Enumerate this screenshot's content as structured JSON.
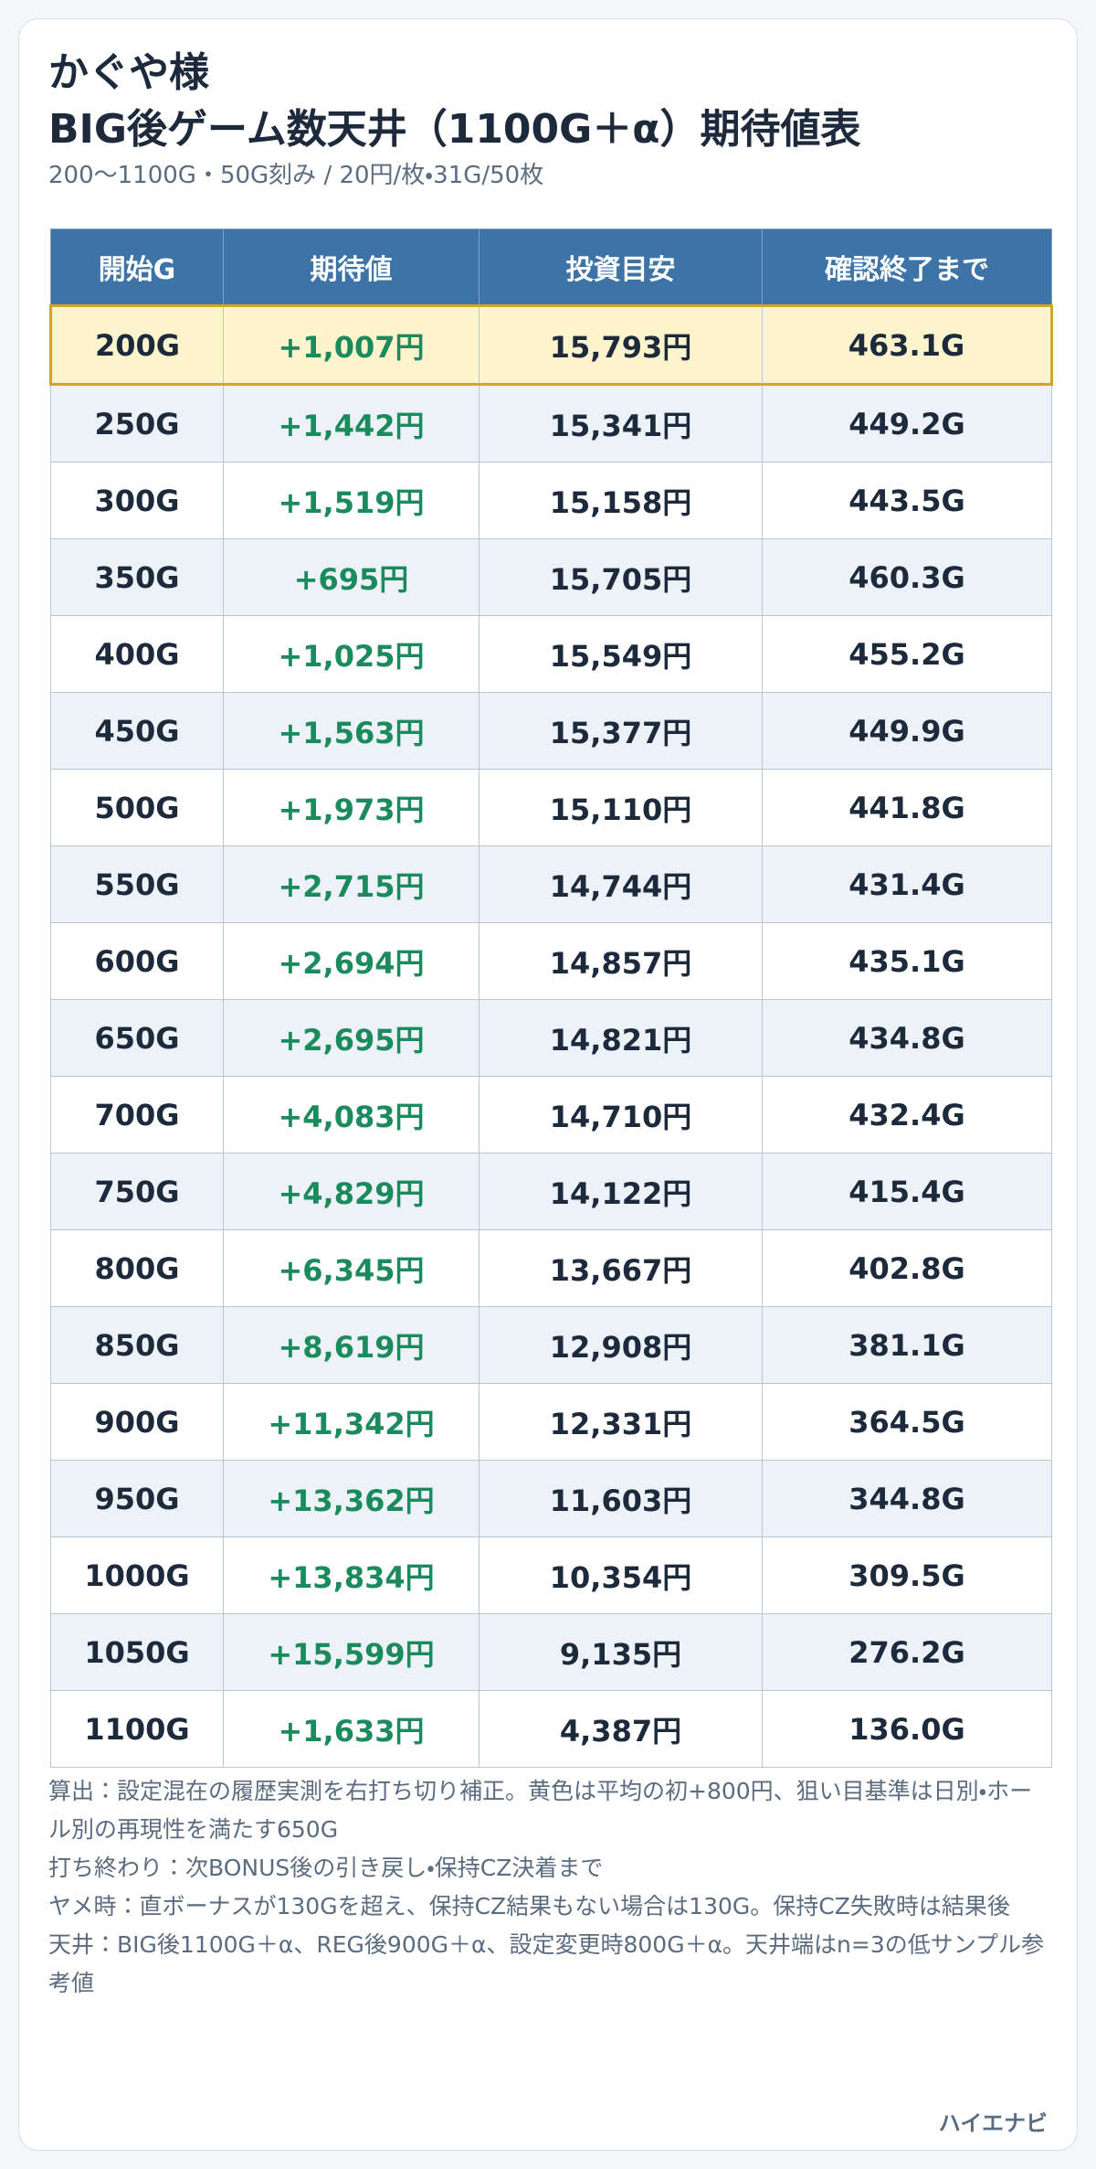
{
  "header": {
    "title_line1": "かぐや様",
    "title_line2": "BIG後ゲーム数天井（1100G＋α）期待値表",
    "subtitle": "200〜1100G・50G刻み / 20円/枚・31G/50枚"
  },
  "table": {
    "columns": [
      "開始G",
      "期待値",
      "投資目安",
      "確認終了まで"
    ],
    "rows": [
      [
        "200G",
        "+1,007円",
        "15,793円",
        "463.1G"
      ],
      [
        "250G",
        "+1,442円",
        "15,341円",
        "449.2G"
      ],
      [
        "300G",
        "+1,519円",
        "15,158円",
        "443.5G"
      ],
      [
        "350G",
        "+695円",
        "15,705円",
        "460.3G"
      ],
      [
        "400G",
        "+1,025円",
        "15,549円",
        "455.2G"
      ],
      [
        "450G",
        "+1,563円",
        "15,377円",
        "449.9G"
      ],
      [
        "500G",
        "+1,973円",
        "15,110円",
        "441.8G"
      ],
      [
        "550G",
        "+2,715円",
        "14,744円",
        "431.4G"
      ],
      [
        "600G",
        "+2,694円",
        "14,857円",
        "435.1G"
      ],
      [
        "650G",
        "+2,695円",
        "14,821円",
        "434.8G"
      ],
      [
        "700G",
        "+4,083円",
        "14,710円",
        "432.4G"
      ],
      [
        "750G",
        "+4,829円",
        "14,122円",
        "415.4G"
      ],
      [
        "800G",
        "+6,345円",
        "13,667円",
        "402.8G"
      ],
      [
        "850G",
        "+8,619円",
        "12,908円",
        "381.1G"
      ],
      [
        "900G",
        "+11,342円",
        "12,331円",
        "364.5G"
      ],
      [
        "950G",
        "+13,362円",
        "11,603円",
        "344.8G"
      ],
      [
        "1000G",
        "+13,834円",
        "10,354円",
        "309.5G"
      ],
      [
        "1050G",
        "+15,599円",
        "9,135円",
        "276.2G"
      ],
      [
        "1100G",
        "+1,633円",
        "4,387円",
        "136.0G"
      ]
    ],
    "highlight_row": 0
  },
  "notes": [
    "算出：設定混在の履歴実測を右打ち切り補正。黄色は平均の初+800円、狙い目基準は日別・ホール別の再現性を満たす650G",
    "打ち終わり：次BONUS後の引き戻し・保持CZ決着まで",
    "ヤメ時：直ボーナスが130Gを超え、保持CZ結果もない場合は130G。保持CZ失敗時は結果後",
    "天井：BIG後1100G＋α、REG後900G＋α、設定変更時800G＋α。天井端はn=3の低サンプル参考値"
  ],
  "footer": "ハイエナビ"
}
